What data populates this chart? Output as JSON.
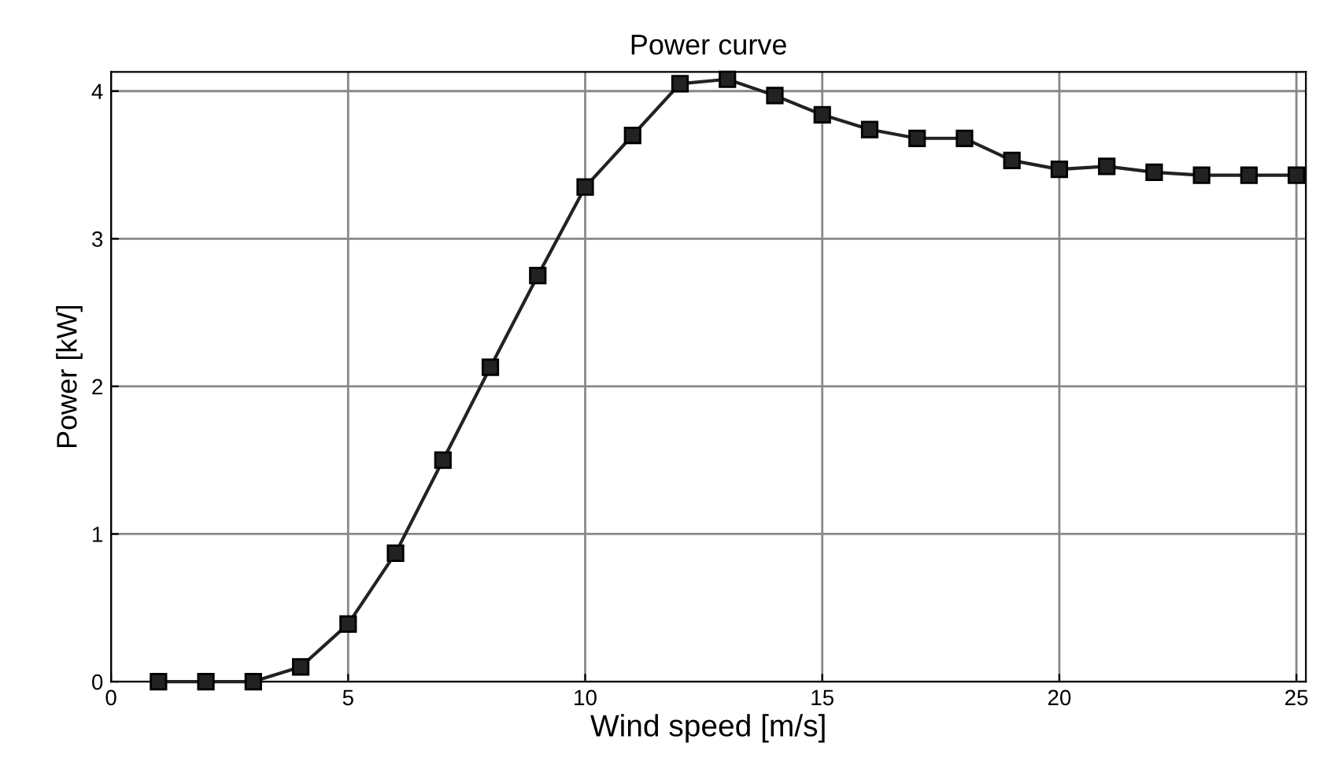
{
  "chart_data": {
    "type": "line",
    "title": "Power curve",
    "xlabel": "Wind speed [m/s]",
    "ylabel": "Power [kW]",
    "x": [
      1,
      2,
      3,
      4,
      5,
      6,
      7,
      8,
      9,
      10,
      11,
      12,
      13,
      14,
      15,
      16,
      17,
      18,
      19,
      20,
      21,
      22,
      23,
      24,
      25
    ],
    "series": [
      {
        "color": "#222222",
        "values": [
          0,
          0,
          0,
          0.1,
          0.39,
          0.87,
          1.5,
          2.13,
          2.75,
          3.35,
          3.7,
          4.05,
          4.08,
          3.97,
          3.84,
          3.74,
          3.68,
          3.68,
          3.53,
          3.47,
          3.49,
          3.45,
          3.43,
          3.43,
          3.43
        ]
      }
    ],
    "xlim": [
      0,
      25.2
    ],
    "ylim": [
      0,
      4.13
    ],
    "xticks": [
      0,
      5,
      10,
      15,
      20,
      25
    ],
    "yticks": [
      0,
      1,
      2,
      3,
      4
    ],
    "grid": true,
    "marker": "square",
    "line_style": "solid"
  }
}
